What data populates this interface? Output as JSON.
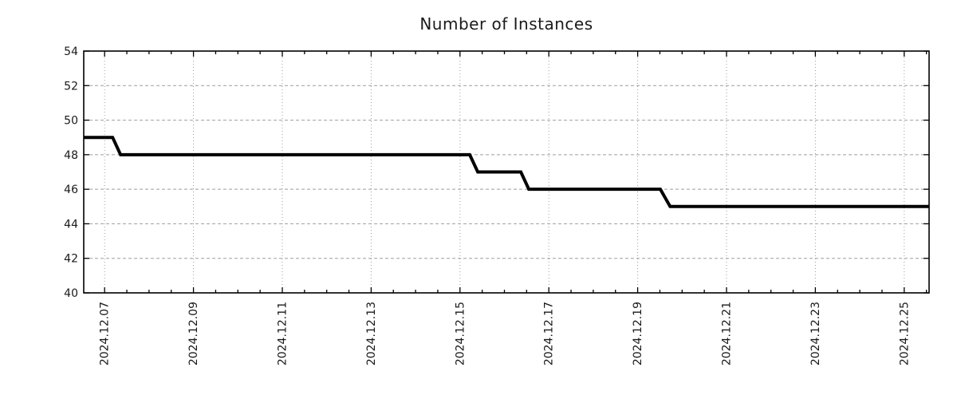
{
  "chart_data": {
    "type": "line",
    "title": "Number of Instances",
    "xlabel": "",
    "ylabel": "",
    "grid": true,
    "legend": "none",
    "style": {
      "line_color": "#000000",
      "line_width": 4,
      "axis_color": "#000000",
      "grid_color": "#9e9e9e",
      "text_color": "#1a1a1a",
      "background": "#ffffff"
    },
    "x_axis": {
      "range": [
        6.53,
        25.56
      ],
      "major_tick_positions": [
        7,
        9,
        11,
        13,
        15,
        17,
        19,
        21,
        23,
        25
      ],
      "tick_labels": [
        "2024.12.07",
        "2024.12.09",
        "2024.12.11",
        "2024.12.13",
        "2024.12.15",
        "2024.12.17",
        "2024.12.19",
        "2024.12.21",
        "2024.12.23",
        "2024.12.25"
      ],
      "minor_tick_interval": 0.5,
      "label_rotation": -90
    },
    "y_axis": {
      "range": [
        40,
        54
      ],
      "major_tick_positions": [
        40,
        42,
        44,
        46,
        48,
        50,
        52,
        54
      ],
      "tick_labels": [
        "40",
        "42",
        "44",
        "46",
        "48",
        "50",
        "52",
        "54"
      ]
    },
    "series": [
      {
        "name": "instances",
        "points": [
          [
            6.53,
            49
          ],
          [
            7.18,
            49
          ],
          [
            7.36,
            48
          ],
          [
            15.22,
            48
          ],
          [
            15.4,
            47
          ],
          [
            16.37,
            47
          ],
          [
            16.55,
            46
          ],
          [
            19.51,
            46
          ],
          [
            19.73,
            45
          ],
          [
            25.56,
            45
          ]
        ]
      }
    ]
  }
}
